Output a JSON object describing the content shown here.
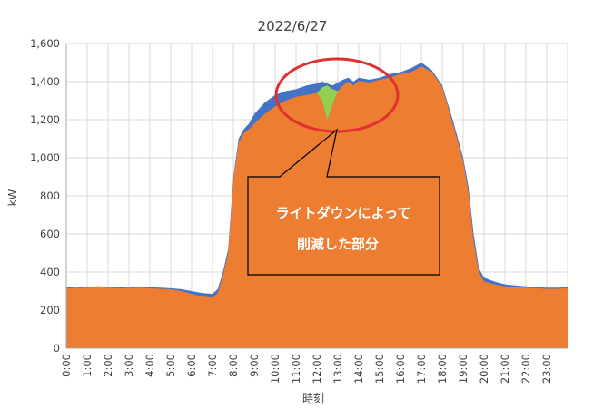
{
  "chart_data": {
    "type": "area",
    "title": "2022/6/27",
    "xlabel": "時刻",
    "ylabel": "kW",
    "ylim": [
      0,
      1600
    ],
    "yticks": [
      "0",
      "200",
      "400",
      "600",
      "800",
      "1,000",
      "1,200",
      "1,400",
      "1,600"
    ],
    "xticks": [
      "0:00",
      "1:00",
      "2:00",
      "3:00",
      "4:00",
      "5:00",
      "6:00",
      "7:00",
      "8:00",
      "9:00",
      "10:00",
      "11:00",
      "12:00",
      "13:00",
      "14:00",
      "15:00",
      "16:00",
      "17:00",
      "18:00",
      "19:00",
      "20:00",
      "21:00",
      "22:00",
      "23:00"
    ],
    "grid": true,
    "x_hours": [
      0,
      0.5,
      1,
      1.5,
      2,
      2.5,
      3,
      3.5,
      4,
      4.5,
      5,
      5.5,
      6,
      6.5,
      7,
      7.25,
      7.5,
      7.75,
      8,
      8.25,
      8.5,
      8.75,
      9,
      9.5,
      10,
      10.5,
      11,
      11.5,
      12,
      12.25,
      12.5,
      12.75,
      13,
      13.25,
      13.5,
      13.75,
      14,
      14.5,
      15,
      15.5,
      16,
      16.5,
      17,
      17.5,
      18,
      18.5,
      19,
      19.25,
      19.5,
      19.75,
      20,
      20.5,
      21,
      21.5,
      22,
      22.5,
      23,
      23.5,
      24
    ],
    "series": [
      {
        "color": "#4472c4",
        "values": [
          320,
          318,
          322,
          325,
          322,
          320,
          318,
          322,
          320,
          318,
          315,
          310,
          300,
          290,
          285,
          310,
          400,
          520,
          900,
          1100,
          1150,
          1180,
          1230,
          1290,
          1330,
          1350,
          1360,
          1380,
          1390,
          1400,
          1390,
          1380,
          1395,
          1410,
          1420,
          1400,
          1420,
          1410,
          1420,
          1440,
          1450,
          1470,
          1500,
          1460,
          1380,
          1200,
          1000,
          850,
          600,
          420,
          370,
          350,
          335,
          330,
          325,
          320,
          318,
          318,
          320
        ]
      },
      {
        "color": "#ed7d31",
        "values": [
          315,
          315,
          318,
          320,
          318,
          315,
          315,
          318,
          315,
          312,
          310,
          300,
          285,
          272,
          265,
          290,
          380,
          500,
          880,
          1080,
          1130,
          1150,
          1180,
          1230,
          1270,
          1300,
          1320,
          1330,
          1340,
          1300,
          1200,
          1280,
          1350,
          1380,
          1400,
          1380,
          1405,
          1395,
          1410,
          1420,
          1440,
          1450,
          1480,
          1450,
          1370,
          1180,
          980,
          820,
          560,
          400,
          350,
          335,
          325,
          320,
          318,
          315,
          312,
          312,
          315
        ]
      },
      {
        "color": "#92d050",
        "values": [
          0,
          0,
          0,
          0,
          0,
          0,
          0,
          0,
          0,
          0,
          0,
          0,
          0,
          0,
          0,
          0,
          0,
          0,
          0,
          0,
          0,
          0,
          0,
          0,
          0,
          0,
          0,
          0,
          1340,
          1370,
          1380,
          1360,
          1350,
          0,
          0,
          0,
          0,
          0,
          0,
          0,
          0,
          0,
          0,
          0,
          0,
          0,
          0,
          0,
          0,
          0,
          0,
          0,
          0,
          0,
          0,
          0,
          0,
          0,
          0
        ]
      }
    ],
    "annotation": {
      "line1": "ライトダウンによって",
      "line2": "削減した部分",
      "box_color": "#ed7d31",
      "circle_color": "#e03030"
    }
  }
}
